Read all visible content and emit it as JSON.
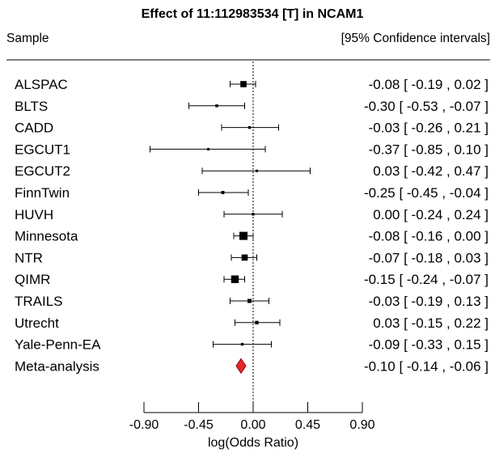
{
  "chart_data": {
    "type": "forest",
    "title": "Effect of 11:112983534 [T] in NCAM1",
    "left_header": "Sample",
    "right_header": "[95% Confidence intervals]",
    "xlabel": "log(Odds Ratio)",
    "xlim": [
      -0.9,
      0.9
    ],
    "xticks": [
      -0.9,
      -0.45,
      0.0,
      0.45,
      0.9
    ],
    "xtick_labels": [
      "-0.90",
      "-0.45",
      "0.00",
      "0.45",
      "0.90"
    ],
    "reference_line": 0,
    "rows": [
      {
        "name": "ALSPAC",
        "est": -0.08,
        "lo": -0.19,
        "hi": 0.02,
        "ci_text": "-0.08 [ -0.19 ,  0.02 ]"
      },
      {
        "name": "BLTS",
        "est": -0.3,
        "lo": -0.53,
        "hi": -0.07,
        "ci_text": "-0.30 [ -0.53 , -0.07 ]"
      },
      {
        "name": "CADD",
        "est": -0.03,
        "lo": -0.26,
        "hi": 0.21,
        "ci_text": "-0.03 [ -0.26 ,  0.21 ]"
      },
      {
        "name": "EGCUT1",
        "est": -0.37,
        "lo": -0.85,
        "hi": 0.1,
        "ci_text": "-0.37 [ -0.85 ,  0.10 ]"
      },
      {
        "name": "EGCUT2",
        "est": 0.03,
        "lo": -0.42,
        "hi": 0.47,
        "ci_text": "0.03 [ -0.42 ,  0.47 ]"
      },
      {
        "name": "FinnTwin",
        "est": -0.25,
        "lo": -0.45,
        "hi": -0.04,
        "ci_text": "-0.25 [ -0.45 , -0.04 ]"
      },
      {
        "name": "HUVH",
        "est": 0.0,
        "lo": -0.24,
        "hi": 0.24,
        "ci_text": "0.00 [ -0.24 ,  0.24 ]"
      },
      {
        "name": "Minnesota",
        "est": -0.08,
        "lo": -0.16,
        "hi": 0.0,
        "ci_text": "-0.08 [ -0.16 ,  0.00 ]"
      },
      {
        "name": "NTR",
        "est": -0.07,
        "lo": -0.18,
        "hi": 0.03,
        "ci_text": "-0.07 [ -0.18 ,  0.03 ]"
      },
      {
        "name": "QIMR",
        "est": -0.15,
        "lo": -0.24,
        "hi": -0.07,
        "ci_text": "-0.15 [ -0.24 , -0.07 ]"
      },
      {
        "name": "TRAILS",
        "est": -0.03,
        "lo": -0.19,
        "hi": 0.13,
        "ci_text": "-0.03 [ -0.19 ,  0.13 ]"
      },
      {
        "name": "Utrecht",
        "est": 0.03,
        "lo": -0.15,
        "hi": 0.22,
        "ci_text": "0.03 [ -0.15 ,  0.22 ]"
      },
      {
        "name": "Yale-Penn-EA",
        "est": -0.09,
        "lo": -0.33,
        "hi": 0.15,
        "ci_text": "-0.09 [ -0.33 ,  0.15 ]"
      }
    ],
    "summary": {
      "name": "Meta-analysis",
      "est": -0.1,
      "lo": -0.14,
      "hi": -0.06,
      "ci_text": "-0.10 [ -0.14 , -0.06 ]"
    },
    "colors": {
      "summary_fill": "#e8262a",
      "marker": "#000000"
    }
  }
}
